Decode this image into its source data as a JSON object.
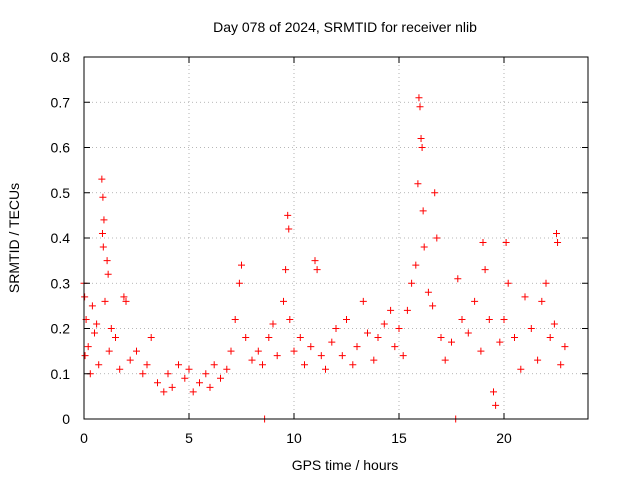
{
  "chart_data": {
    "type": "scatter",
    "title": "Day 078 of 2024, SRMTID for receiver nlib",
    "xlabel": "GPS time / hours",
    "ylabel": "SRMTID / TECUs",
    "xlim": [
      0,
      24
    ],
    "ylim": [
      0,
      0.8
    ],
    "x_ticks": [
      0,
      5,
      10,
      15,
      20
    ],
    "x_tick_labels": [
      "0",
      "5",
      "10",
      "15",
      "20"
    ],
    "y_ticks": [
      0,
      0.1,
      0.2,
      0.3,
      0.4,
      0.5,
      0.6,
      0.7,
      0.8
    ],
    "y_tick_labels": [
      "0",
      "0.1",
      "0.2",
      "0.3",
      "0.4",
      "0.5",
      "0.6",
      "0.7",
      "0.8"
    ],
    "grid": true,
    "marker": "plus",
    "colors": {
      "points": "#ff0000",
      "grid": "#a0a0a0",
      "axis": "#000000"
    },
    "series": [
      {
        "name": "nlib",
        "points": [
          [
            0.0,
            0.3
          ],
          [
            0.03,
            0.27
          ],
          [
            0.1,
            0.22
          ],
          [
            0.05,
            0.14
          ],
          [
            0.2,
            0.16
          ],
          [
            0.3,
            0.1
          ],
          [
            0.4,
            0.25
          ],
          [
            0.5,
            0.19
          ],
          [
            0.6,
            0.21
          ],
          [
            0.7,
            0.12
          ],
          [
            0.85,
            0.53
          ],
          [
            0.9,
            0.49
          ],
          [
            0.95,
            0.44
          ],
          [
            0.88,
            0.41
          ],
          [
            0.92,
            0.38
          ],
          [
            1.0,
            0.26
          ],
          [
            1.1,
            0.35
          ],
          [
            1.15,
            0.32
          ],
          [
            1.2,
            0.15
          ],
          [
            1.3,
            0.2
          ],
          [
            1.5,
            0.18
          ],
          [
            1.7,
            0.11
          ],
          [
            1.9,
            0.27
          ],
          [
            2.0,
            0.26
          ],
          [
            2.2,
            0.13
          ],
          [
            2.5,
            0.15
          ],
          [
            2.8,
            0.1
          ],
          [
            3.0,
            0.12
          ],
          [
            3.2,
            0.18
          ],
          [
            3.5,
            0.08
          ],
          [
            3.8,
            0.06
          ],
          [
            4.0,
            0.1
          ],
          [
            4.2,
            0.07
          ],
          [
            4.5,
            0.12
          ],
          [
            4.8,
            0.09
          ],
          [
            5.0,
            0.11
          ],
          [
            5.2,
            0.06
          ],
          [
            5.5,
            0.08
          ],
          [
            5.8,
            0.1
          ],
          [
            6.0,
            0.07
          ],
          [
            6.2,
            0.12
          ],
          [
            6.5,
            0.09
          ],
          [
            6.8,
            0.11
          ],
          [
            7.0,
            0.15
          ],
          [
            7.2,
            0.22
          ],
          [
            7.4,
            0.3
          ],
          [
            7.5,
            0.34
          ],
          [
            7.7,
            0.18
          ],
          [
            8.0,
            0.13
          ],
          [
            8.3,
            0.15
          ],
          [
            8.5,
            0.12
          ],
          [
            8.6,
            0.0
          ],
          [
            8.8,
            0.18
          ],
          [
            9.0,
            0.21
          ],
          [
            9.2,
            0.14
          ],
          [
            9.5,
            0.26
          ],
          [
            9.6,
            0.33
          ],
          [
            9.7,
            0.45
          ],
          [
            9.75,
            0.42
          ],
          [
            9.8,
            0.22
          ],
          [
            10.0,
            0.15
          ],
          [
            10.3,
            0.18
          ],
          [
            10.5,
            0.12
          ],
          [
            10.8,
            0.16
          ],
          [
            11.0,
            0.35
          ],
          [
            11.1,
            0.33
          ],
          [
            11.3,
            0.14
          ],
          [
            11.5,
            0.11
          ],
          [
            11.8,
            0.17
          ],
          [
            12.0,
            0.2
          ],
          [
            12.3,
            0.14
          ],
          [
            12.5,
            0.22
          ],
          [
            12.8,
            0.12
          ],
          [
            13.0,
            0.16
          ],
          [
            13.3,
            0.26
          ],
          [
            13.5,
            0.19
          ],
          [
            13.8,
            0.13
          ],
          [
            14.0,
            0.18
          ],
          [
            14.3,
            0.21
          ],
          [
            14.6,
            0.24
          ],
          [
            14.8,
            0.16
          ],
          [
            15.0,
            0.2
          ],
          [
            15.2,
            0.14
          ],
          [
            15.4,
            0.24
          ],
          [
            15.6,
            0.3
          ],
          [
            15.8,
            0.34
          ],
          [
            15.9,
            0.52
          ],
          [
            15.95,
            0.71
          ],
          [
            16.0,
            0.69
          ],
          [
            16.05,
            0.62
          ],
          [
            16.1,
            0.6
          ],
          [
            16.15,
            0.46
          ],
          [
            16.2,
            0.38
          ],
          [
            16.4,
            0.28
          ],
          [
            16.6,
            0.25
          ],
          [
            16.7,
            0.5
          ],
          [
            16.8,
            0.4
          ],
          [
            17.0,
            0.18
          ],
          [
            17.2,
            0.13
          ],
          [
            17.5,
            0.17
          ],
          [
            17.7,
            0.0
          ],
          [
            17.8,
            0.31
          ],
          [
            18.0,
            0.22
          ],
          [
            18.3,
            0.19
          ],
          [
            18.6,
            0.26
          ],
          [
            18.9,
            0.15
          ],
          [
            19.0,
            0.39
          ],
          [
            19.1,
            0.33
          ],
          [
            19.3,
            0.22
          ],
          [
            19.5,
            0.06
          ],
          [
            19.6,
            0.03
          ],
          [
            19.8,
            0.17
          ],
          [
            20.0,
            0.22
          ],
          [
            20.1,
            0.39
          ],
          [
            20.2,
            0.3
          ],
          [
            20.5,
            0.18
          ],
          [
            20.8,
            0.11
          ],
          [
            21.0,
            0.27
          ],
          [
            21.3,
            0.2
          ],
          [
            21.6,
            0.13
          ],
          [
            21.8,
            0.26
          ],
          [
            22.0,
            0.3
          ],
          [
            22.2,
            0.18
          ],
          [
            22.4,
            0.21
          ],
          [
            22.5,
            0.41
          ],
          [
            22.55,
            0.39
          ],
          [
            22.7,
            0.12
          ],
          [
            22.9,
            0.16
          ]
        ]
      }
    ]
  }
}
